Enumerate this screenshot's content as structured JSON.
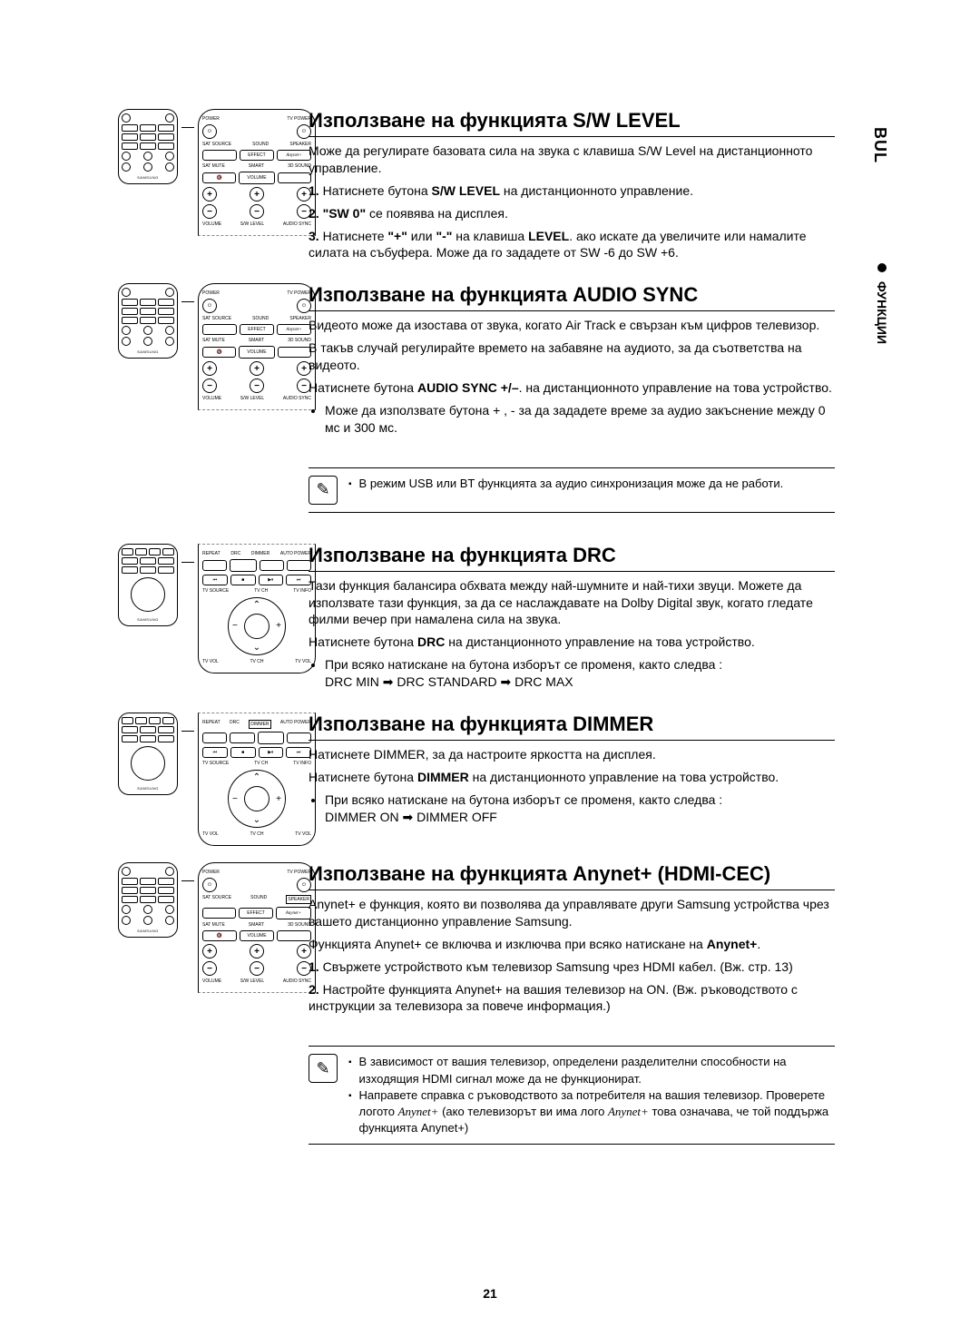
{
  "language_tab": "BUL",
  "side_section": "ФУНКЦИИ",
  "page_number": "21",
  "sections": {
    "sw_level": {
      "title": "Използване на функцията S/W LEVEL",
      "intro": "Може да регулирате базовата сила на звука с клавиша S/W Level на дистанционното управление.",
      "step1_prefix": "1.",
      "step1_a": "Натиснете бутона ",
      "step1_b": "S/W LEVEL",
      "step1_c": " на дистанционното управление.",
      "step2_prefix": "2.",
      "step2_a": "\"SW 0\"",
      "step2_b": " се появява на дисплея.",
      "step3_prefix": "3.",
      "step3_a": "Натиснете ",
      "step3_b": "\"+\"",
      "step3_c": " или ",
      "step3_d": "\"-\"",
      "step3_e": " на клавиша ",
      "step3_f": "LEVEL",
      "step3_g": ". ако искате да увеличите или намалите силата на събуфера. Може да го зададете от SW -6 до SW +6."
    },
    "audio_sync": {
      "title": "Използване на функцията AUDIO SYNC",
      "p1": "Видеото може да изостава от звука, когато Air Track е свързан към цифров телевизор.",
      "p2": "В такъв случай регулирайте времето на забавяне на аудиото, за да съответства на видеото.",
      "p3_a": "Натиснете бутона ",
      "p3_b": "AUDIO SYNC +/–",
      "p3_c": ". на дистанционното управление на това устройство.",
      "bullet1": "Може да използвате бутона + , - за да зададете време за аудио закъснение между 0 мс и 300 мс.",
      "note": "В режим USB или BT функцията за аудио синхронизация може да не работи."
    },
    "drc": {
      "title": "Използване на функцията DRC",
      "p1": "Тази функция балансира обхвата между най-шумните и най-тихи звуци. Можете да използвате тази функция, за да се наслаждавате на Dolby Digital звук, когато гледате филми вечер при намалена сила на звука.",
      "p2_a": "Натиснете бутона ",
      "p2_b": "DRC",
      "p2_c": " на дистанционното управление на това устройство.",
      "bullet_a": "При всяко натискане на бутона изборът се променя, както следва :",
      "bullet_b": "DRC MIN ➡ DRC STANDARD ➡ DRC MAX"
    },
    "dimmer": {
      "title": "Използване на функцията DIMMER",
      "p1": "Натиснете DIMMER, за да настроите яркостта на дисплея.",
      "p2_a": "Натиснете бутона ",
      "p2_b": "DIMMER",
      "p2_c": " на дистанционното управление на това устройство.",
      "bullet_a": "При всяко натискане на бутона изборът се променя, както следва :",
      "bullet_b": "DIMMER ON ➡ DIMMER OFF"
    },
    "anynet": {
      "title": "Използване на функцията Anynet+ (HDMI-CEC)",
      "p1": "Anynet+ е функция, която ви позволява да управлявате други Samsung устройства чрез вашето дистанционно управление Samsung.",
      "p2_a": "Функцията Anynet+ се включва и изключва при всяко натискане на ",
      "p2_b": "Anynet+",
      "p2_c": ".",
      "step1_prefix": "1.",
      "step1": "Свържете устройството към телевизор Samsung чрез HDMI кабел. (Вж. стр. 13)",
      "step2_prefix": "2.",
      "step2": "Настройте функцията Anynet+ на вашия телевизор на ON. (Вж. ръководството с инструкции за телевизора за повече информация.)",
      "note1": "В зависимост от вашия телевизор, определени разделителни способности на изходящия HDMI сигнал може да не функционират.",
      "note2_a": "Направете справка с ръководството за потребителя на вашия телевизор. Проверете логото ",
      "note2_b": " (ако телевизорът ви има лого ",
      "note2_c": " това означава, че той поддържа функцията Anynet+)"
    }
  },
  "remote_labels": {
    "power": "POWER",
    "tv_power": "TV POWER",
    "sat_source": "SAT SOURCE",
    "sound": "SOUND",
    "effect": "EFFECT",
    "speaker": "SPEAKER",
    "sat_mute": "SAT MUTE",
    "smart": "SMART",
    "volume_btn": "VOLUME",
    "sound_3d": "3D SOUND",
    "volume": "VOLUME",
    "sw_level": "S/W LEVEL",
    "audio_sync": "AUDIO SYNC",
    "repeat": "REPEAT",
    "drc": "DRC",
    "dimmer": "DIMMER",
    "auto_power": "AUTO POWER",
    "tv_source": "TV SOURCE",
    "tv_ch": "TV CH",
    "tv_info": "TV INFO",
    "tv_vol": "TV VOL",
    "samsung": "SAMSUNG",
    "anynet": "Anynet+"
  }
}
